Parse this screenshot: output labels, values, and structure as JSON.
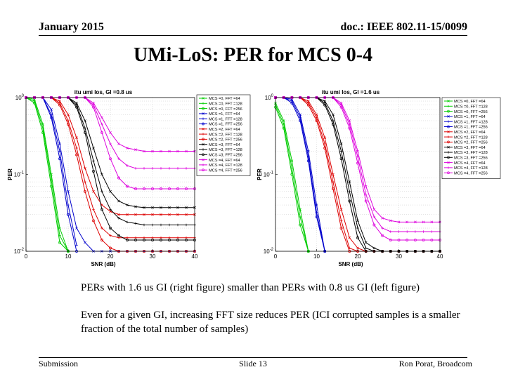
{
  "header": {
    "date": "January 2015",
    "doc": "doc.: IEEE 802.11-15/0099"
  },
  "slide_title": "UMi-LoS: PER for MCS 0-4",
  "captions": [
    "PERs with 1.6 us GI (right figure) smaller than PERs with 0.8 us GI (left figure)",
    "Even for a given GI, increasing FFT size reduces PER (ICI corrupted samples is a smaller fraction of the total number of samples)"
  ],
  "footer": {
    "left": "Submission",
    "center": "Slide 13",
    "right": "Ron Porat, Broadcom"
  },
  "chart_data": [
    {
      "type": "line",
      "title": "itu umi los, GI =0.8 us",
      "xlabel": "SNR (dB)",
      "ylabel": "PER",
      "xlim": [
        0,
        40
      ],
      "ylim": [
        0.01,
        1
      ],
      "yscale": "log",
      "xticks": [
        "0",
        "10",
        "20",
        "30",
        "40"
      ],
      "yticks": [
        "10^0",
        "10^-1",
        "10^-2"
      ],
      "grid": true,
      "legend_position": "right",
      "x": [
        0,
        2,
        4,
        6,
        8,
        10,
        12,
        14,
        16,
        18,
        20,
        22,
        24,
        26,
        28,
        30,
        32,
        34,
        36,
        38,
        40
      ],
      "series": [
        {
          "name": "MCS =0, FFT =64",
          "color": "#00cc00",
          "marker": "x",
          "values": [
            1,
            0.95,
            0.45,
            0.1,
            0.02,
            0.006,
            null,
            null,
            null,
            null,
            null,
            null,
            null,
            null,
            null,
            null,
            null,
            null,
            null,
            null,
            null
          ]
        },
        {
          "name": "MCS =0, FFT =128",
          "color": "#00cc00",
          "marker": "*",
          "values": [
            1,
            0.9,
            0.4,
            0.085,
            0.016,
            0.005,
            null,
            null,
            null,
            null,
            null,
            null,
            null,
            null,
            null,
            null,
            null,
            null,
            null,
            null,
            null
          ]
        },
        {
          "name": "MCS =0, FFT =256",
          "color": "#00cc00",
          "marker": "o",
          "values": [
            1,
            0.85,
            0.35,
            0.07,
            0.013,
            0.004,
            null,
            null,
            null,
            null,
            null,
            null,
            null,
            null,
            null,
            null,
            null,
            null,
            null,
            null,
            null
          ]
        },
        {
          "name": "MCS =1, FFT =64",
          "color": "#0000cc",
          "marker": "x",
          "values": [
            1,
            1,
            1,
            0.7,
            0.25,
            0.06,
            0.02,
            0.013,
            0.01,
            0.009,
            0.009,
            0.009,
            0.009,
            0.009,
            0.009,
            0.009,
            0.009,
            0.009,
            0.009,
            0.009,
            0.009
          ]
        },
        {
          "name": "MCS =1, FFT =128",
          "color": "#0000cc",
          "marker": "*",
          "values": [
            1,
            1,
            1,
            0.6,
            0.2,
            0.04,
            0.012,
            null,
            null,
            null,
            null,
            null,
            null,
            null,
            null,
            null,
            null,
            null,
            null,
            null,
            null
          ]
        },
        {
          "name": "MCS =1, FFT =256",
          "color": "#0000cc",
          "marker": "o",
          "values": [
            1,
            1,
            1,
            0.55,
            0.16,
            0.03,
            0.008,
            null,
            null,
            null,
            null,
            null,
            null,
            null,
            null,
            null,
            null,
            null,
            null,
            null,
            null
          ]
        },
        {
          "name": "MCS =2, FFT =64",
          "color": "#dd0000",
          "marker": "x",
          "values": [
            1,
            1,
            1,
            1,
            0.9,
            0.6,
            0.3,
            0.12,
            0.06,
            0.04,
            0.033,
            0.03,
            0.03,
            0.03,
            0.03,
            0.03,
            0.03,
            0.03,
            0.03,
            0.03,
            0.03
          ]
        },
        {
          "name": "MCS =2, FFT =128",
          "color": "#dd0000",
          "marker": "*",
          "values": [
            1,
            1,
            1,
            1,
            0.85,
            0.5,
            0.22,
            0.08,
            0.035,
            0.02,
            0.016,
            0.015,
            0.015,
            0.015,
            0.015,
            0.015,
            0.015,
            0.015,
            0.015,
            0.015,
            0.015
          ]
        },
        {
          "name": "MCS =2, FFT =256",
          "color": "#dd0000",
          "marker": "o",
          "values": [
            1,
            1,
            1,
            1,
            0.8,
            0.45,
            0.18,
            0.06,
            0.025,
            0.014,
            0.011,
            0.01,
            0.01,
            0.01,
            0.01,
            0.01,
            0.01,
            0.01,
            0.01,
            0.01,
            0.01
          ]
        },
        {
          "name": "MCS =3, FFT =64",
          "color": "#000000",
          "marker": "x",
          "values": [
            1,
            1,
            1,
            1,
            1,
            1,
            0.85,
            0.5,
            0.22,
            0.1,
            0.06,
            0.045,
            0.04,
            0.038,
            0.037,
            0.037,
            0.037,
            0.037,
            0.037,
            0.037,
            0.037
          ]
        },
        {
          "name": "MCS =3, FFT =128",
          "color": "#000000",
          "marker": "*",
          "values": [
            1,
            1,
            1,
            1,
            1,
            1,
            0.8,
            0.4,
            0.15,
            0.06,
            0.035,
            0.027,
            0.024,
            0.023,
            0.022,
            0.022,
            0.022,
            0.022,
            0.022,
            0.022,
            0.022
          ]
        },
        {
          "name": "MCS =3, FFT =256",
          "color": "#000000",
          "marker": "o",
          "values": [
            1,
            1,
            1,
            1,
            1,
            1,
            0.75,
            0.35,
            0.11,
            0.035,
            0.02,
            0.016,
            0.014,
            0.014,
            0.014,
            0.014,
            0.014,
            0.014,
            0.014,
            0.014,
            0.014
          ]
        },
        {
          "name": "MCS =4, FFT =64",
          "color": "#dd00dd",
          "marker": "x",
          "values": [
            1,
            1,
            1,
            1,
            1,
            1,
            1,
            1,
            0.85,
            0.55,
            0.35,
            0.25,
            0.22,
            0.21,
            0.2,
            0.2,
            0.2,
            0.2,
            0.2,
            0.2,
            0.2
          ]
        },
        {
          "name": "MCS =4, FFT =128",
          "color": "#dd00dd",
          "marker": "*",
          "values": [
            1,
            1,
            1,
            1,
            1,
            1,
            1,
            1,
            0.8,
            0.45,
            0.25,
            0.16,
            0.13,
            0.12,
            0.12,
            0.12,
            0.12,
            0.12,
            0.12,
            0.12,
            0.12
          ]
        },
        {
          "name": "MCS =4, FFT =256",
          "color": "#dd00dd",
          "marker": "o",
          "values": [
            1,
            1,
            1,
            1,
            1,
            1,
            1,
            1,
            0.75,
            0.35,
            0.16,
            0.09,
            0.07,
            0.065,
            0.065,
            0.065,
            0.065,
            0.065,
            0.065,
            0.065,
            0.065
          ]
        }
      ]
    },
    {
      "type": "line",
      "title": "itu umi los, GI =1.6 us",
      "xlabel": "SNR (dB)",
      "ylabel": "PER",
      "xlim": [
        0,
        40
      ],
      "ylim": [
        0.01,
        1
      ],
      "yscale": "log",
      "xticks": [
        "0",
        "10",
        "20",
        "30",
        "40"
      ],
      "yticks": [
        "10^0",
        "10^-1",
        "10^-2"
      ],
      "grid": true,
      "legend_position": "right",
      "x": [
        0,
        2,
        4,
        6,
        8,
        10,
        12,
        14,
        16,
        18,
        20,
        22,
        24,
        26,
        28,
        30,
        32,
        34,
        36,
        38,
        40
      ],
      "series": [
        {
          "name": "MCS =0, FFT =64",
          "color": "#00cc00",
          "marker": "x",
          "values": [
            0.85,
            0.5,
            0.15,
            0.035,
            0.008,
            null,
            null,
            null,
            null,
            null,
            null,
            null,
            null,
            null,
            null,
            null,
            null,
            null,
            null,
            null,
            null
          ]
        },
        {
          "name": "MCS =0, FFT =128",
          "color": "#00cc00",
          "marker": "*",
          "values": [
            0.8,
            0.45,
            0.12,
            0.028,
            0.007,
            null,
            null,
            null,
            null,
            null,
            null,
            null,
            null,
            null,
            null,
            null,
            null,
            null,
            null,
            null,
            null
          ]
        },
        {
          "name": "MCS =0, FFT =256",
          "color": "#00cc00",
          "marker": "o",
          "values": [
            0.75,
            0.4,
            0.1,
            0.022,
            0.006,
            null,
            null,
            null,
            null,
            null,
            null,
            null,
            null,
            null,
            null,
            null,
            null,
            null,
            null,
            null,
            null
          ]
        },
        {
          "name": "MCS =1, FFT =64",
          "color": "#0000cc",
          "marker": "x",
          "values": [
            1,
            1,
            0.95,
            0.6,
            0.2,
            0.04,
            0.01,
            null,
            null,
            null,
            null,
            null,
            null,
            null,
            null,
            null,
            null,
            null,
            null,
            null,
            null
          ]
        },
        {
          "name": "MCS =1, FFT =128",
          "color": "#0000cc",
          "marker": "*",
          "values": [
            1,
            1,
            0.9,
            0.55,
            0.17,
            0.032,
            0.008,
            null,
            null,
            null,
            null,
            null,
            null,
            null,
            null,
            null,
            null,
            null,
            null,
            null,
            null
          ]
        },
        {
          "name": "MCS =1, FFT =256",
          "color": "#0000cc",
          "marker": "o",
          "values": [
            1,
            1,
            0.85,
            0.5,
            0.15,
            0.028,
            0.007,
            null,
            null,
            null,
            null,
            null,
            null,
            null,
            null,
            null,
            null,
            null,
            null,
            null,
            null
          ]
        },
        {
          "name": "MCS =2, FFT =64",
          "color": "#dd0000",
          "marker": "x",
          "values": [
            1,
            1,
            1,
            1,
            0.9,
            0.6,
            0.3,
            0.1,
            0.035,
            0.015,
            0.011,
            0.01,
            0.01,
            0.01,
            0.01,
            0.01,
            0.01,
            0.01,
            0.01,
            0.01,
            0.01
          ]
        },
        {
          "name": "MCS =2, FFT =128",
          "color": "#dd0000",
          "marker": "*",
          "values": [
            1,
            1,
            1,
            1,
            0.85,
            0.55,
            0.25,
            0.08,
            0.025,
            0.011,
            0.009,
            0.009,
            0.009,
            0.009,
            0.009,
            0.009,
            0.009,
            0.009,
            0.009,
            0.009,
            0.009
          ]
        },
        {
          "name": "MCS =2, FFT =256",
          "color": "#dd0000",
          "marker": "o",
          "values": [
            1,
            1,
            1,
            1,
            0.8,
            0.5,
            0.22,
            0.065,
            0.02,
            0.009,
            0.008,
            0.008,
            0.008,
            0.008,
            0.008,
            0.008,
            0.008,
            0.008,
            0.008,
            0.008,
            0.008
          ]
        },
        {
          "name": "MCS =3, FFT =64",
          "color": "#000000",
          "marker": "x",
          "values": [
            1,
            1,
            1,
            1,
            1,
            1,
            0.9,
            0.6,
            0.25,
            0.08,
            0.025,
            0.013,
            0.011,
            0.01,
            0.01,
            0.01,
            0.01,
            0.01,
            0.01,
            0.01,
            0.01
          ]
        },
        {
          "name": "MCS =3, FFT =128",
          "color": "#000000",
          "marker": "*",
          "values": [
            1,
            1,
            1,
            1,
            1,
            1,
            0.85,
            0.5,
            0.2,
            0.06,
            0.02,
            0.011,
            0.01,
            0.01,
            0.01,
            0.01,
            0.01,
            0.01,
            0.01,
            0.01,
            0.01
          ]
        },
        {
          "name": "MCS =3, FFT =256",
          "color": "#000000",
          "marker": "o",
          "values": [
            1,
            1,
            1,
            1,
            1,
            1,
            0.8,
            0.45,
            0.16,
            0.045,
            0.015,
            0.009,
            0.008,
            0.008,
            0.008,
            0.008,
            0.008,
            0.008,
            0.008,
            0.008,
            0.008
          ]
        },
        {
          "name": "MCS =4, FFT =64",
          "color": "#dd00dd",
          "marker": "x",
          "values": [
            1,
            1,
            1,
            1,
            1,
            1,
            1,
            1,
            0.85,
            0.5,
            0.2,
            0.07,
            0.035,
            0.027,
            0.025,
            0.024,
            0.024,
            0.024,
            0.024,
            0.024,
            0.024
          ]
        },
        {
          "name": "MCS =4, FFT =128",
          "color": "#dd00dd",
          "marker": "*",
          "values": [
            1,
            1,
            1,
            1,
            1,
            1,
            1,
            1,
            0.8,
            0.45,
            0.17,
            0.055,
            0.028,
            0.02,
            0.018,
            0.018,
            0.018,
            0.018,
            0.018,
            0.018,
            0.018
          ]
        },
        {
          "name": "MCS =4, FFT =256",
          "color": "#dd00dd",
          "marker": "o",
          "values": [
            1,
            1,
            1,
            1,
            1,
            1,
            1,
            1,
            0.75,
            0.4,
            0.14,
            0.045,
            0.022,
            0.016,
            0.014,
            0.014,
            0.014,
            0.014,
            0.014,
            0.014,
            0.014
          ]
        }
      ]
    }
  ]
}
